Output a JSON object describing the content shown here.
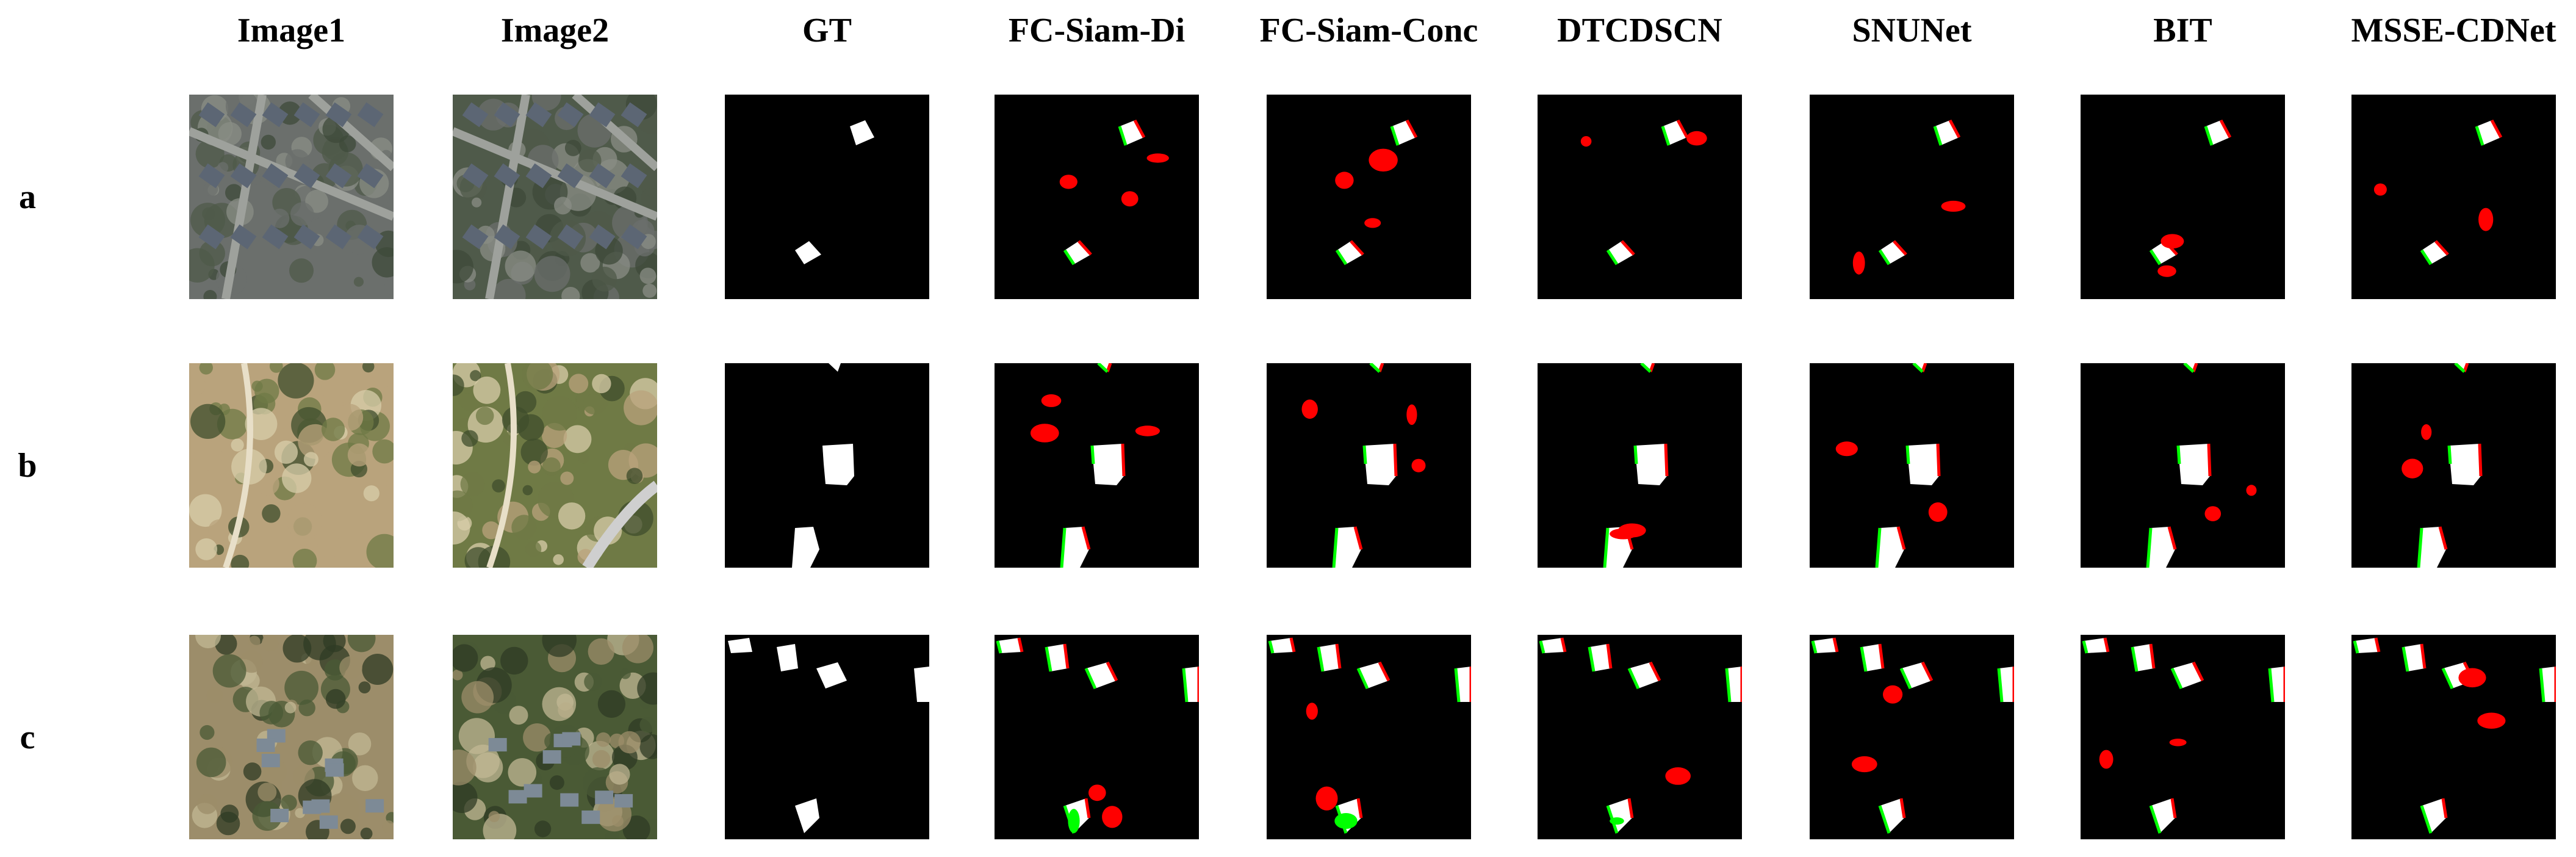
{
  "columns": [
    "Image1",
    "Image2",
    "GT",
    "FC-Siam-Di",
    "FC-Siam-Conc",
    "DTCDSCN",
    "SNUNet",
    "BIT",
    "MSSE-CDNet"
  ],
  "rows": [
    "a",
    "b",
    "c"
  ],
  "colors": {
    "background": "#000000",
    "true_positive": "#ffffff",
    "false_positive": "#ff0000",
    "false_negative": "#00ff00"
  }
}
